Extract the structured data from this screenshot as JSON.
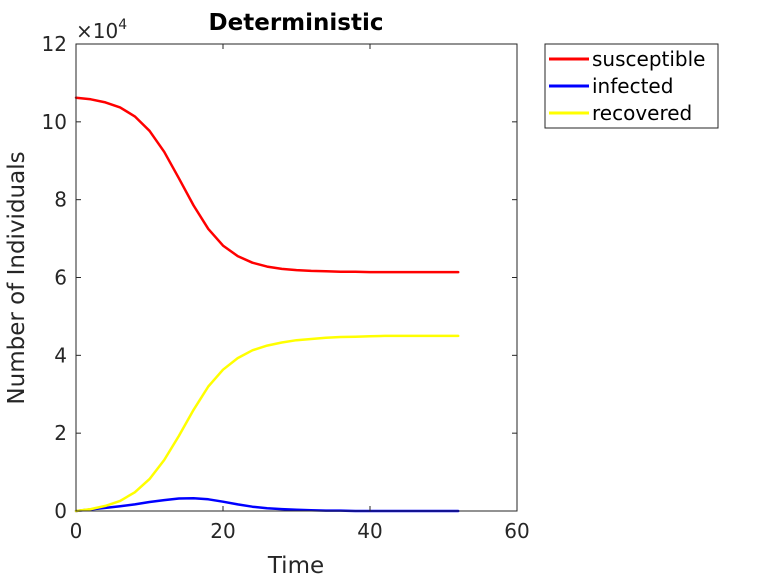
{
  "chart_data": {
    "type": "line",
    "title": "Deterministic",
    "xlabel": "Time",
    "ylabel": "Number of Individuals",
    "y_multiplier_label": "×10",
    "y_multiplier_exponent": "4",
    "xlim": [
      0,
      60
    ],
    "ylim": [
      0,
      12
    ],
    "y_scale_factor": 10000,
    "xticks": [
      0,
      20,
      40,
      60
    ],
    "yticks": [
      0,
      2,
      4,
      6,
      8,
      10,
      12
    ],
    "grid": false,
    "legend_position": "outside top-right",
    "series": [
      {
        "name": "susceptible",
        "color": "#ff0000",
        "x": [
          0,
          2,
          4,
          6,
          8,
          10,
          12,
          14,
          16,
          18,
          20,
          22,
          24,
          26,
          28,
          30,
          32,
          34,
          36,
          38,
          40,
          42,
          44,
          46,
          48,
          50,
          52
        ],
        "y": [
          10.62,
          10.58,
          10.5,
          10.37,
          10.14,
          9.77,
          9.23,
          8.55,
          7.85,
          7.25,
          6.82,
          6.55,
          6.38,
          6.28,
          6.22,
          6.19,
          6.17,
          6.16,
          6.15,
          6.15,
          6.14,
          6.14,
          6.14,
          6.14,
          6.14,
          6.14,
          6.14
        ]
      },
      {
        "name": "infected",
        "color": "#0000ff",
        "x": [
          0,
          2,
          4,
          6,
          8,
          10,
          12,
          14,
          16,
          18,
          20,
          22,
          24,
          26,
          28,
          30,
          32,
          34,
          36,
          38,
          40,
          42,
          44,
          46,
          48,
          50,
          52
        ],
        "y": [
          0.0,
          0.04,
          0.08,
          0.12,
          0.17,
          0.23,
          0.28,
          0.32,
          0.33,
          0.3,
          0.24,
          0.17,
          0.11,
          0.07,
          0.05,
          0.03,
          0.02,
          0.01,
          0.01,
          0.0,
          0.0,
          0.0,
          0.0,
          0.0,
          0.0,
          0.0,
          0.0
        ]
      },
      {
        "name": "recovered",
        "color": "#ffff00",
        "x": [
          0,
          2,
          4,
          6,
          8,
          10,
          12,
          14,
          16,
          18,
          20,
          22,
          24,
          26,
          28,
          30,
          32,
          34,
          36,
          38,
          40,
          42,
          44,
          46,
          48,
          50,
          52
        ],
        "y": [
          0.0,
          0.05,
          0.13,
          0.26,
          0.48,
          0.82,
          1.31,
          1.93,
          2.6,
          3.2,
          3.63,
          3.93,
          4.13,
          4.25,
          4.33,
          4.39,
          4.42,
          4.45,
          4.47,
          4.48,
          4.49,
          4.5,
          4.5,
          4.5,
          4.5,
          4.5,
          4.5
        ]
      }
    ]
  }
}
